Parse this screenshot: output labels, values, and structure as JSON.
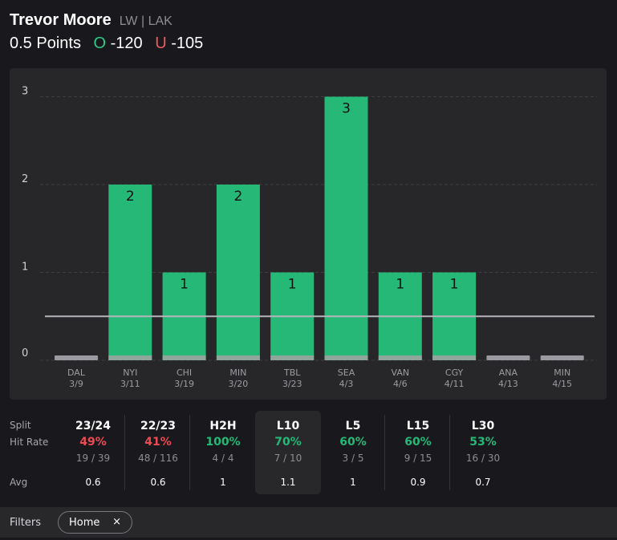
{
  "header": {
    "player": "Trevor Moore",
    "position": "LW | LAK",
    "prop": "0.5 Points",
    "over_symbol": "O",
    "over_odds": "-120",
    "under_symbol": "U",
    "under_odds": "-105"
  },
  "colors": {
    "green": "#26b877",
    "red": "#ec4b52",
    "line": "#b5b5b9",
    "zero_bar": "#9a9aa0"
  },
  "chart_data": {
    "type": "bar",
    "categories": [
      "DAL\n3/9",
      "NYI\n3/11",
      "CHI\n3/19",
      "MIN\n3/20",
      "TBL\n3/23",
      "SEA\n4/3",
      "VAN\n4/6",
      "CGY\n4/11",
      "ANA\n4/13",
      "MIN\n4/15"
    ],
    "teams": [
      "DAL",
      "NYI",
      "CHI",
      "MIN",
      "TBL",
      "SEA",
      "VAN",
      "CGY",
      "ANA",
      "MIN"
    ],
    "dates": [
      "3/9",
      "3/11",
      "3/19",
      "3/20",
      "3/23",
      "4/3",
      "4/6",
      "4/11",
      "4/13",
      "4/15"
    ],
    "values": [
      0,
      2,
      1,
      2,
      1,
      3,
      1,
      1,
      0,
      0
    ],
    "threshold": 0.5,
    "ylim": [
      0,
      3
    ],
    "yticks": [
      "0",
      "1",
      "2",
      "3"
    ],
    "grid": true
  },
  "stats": {
    "row_labels": [
      "Split",
      "Hit Rate",
      "Avg"
    ],
    "columns": [
      {
        "split": "23/24",
        "rate": "49%",
        "frac": "19 / 39",
        "avg": "0.6",
        "tone": "red"
      },
      {
        "split": "22/23",
        "rate": "41%",
        "frac": "48 / 116",
        "avg": "0.6",
        "tone": "red"
      },
      {
        "split": "H2H",
        "rate": "100%",
        "frac": "4 / 4",
        "avg": "1",
        "tone": "green"
      },
      {
        "split": "L10",
        "rate": "70%",
        "frac": "7 / 10",
        "avg": "1.1",
        "tone": "green",
        "selected": true
      },
      {
        "split": "L5",
        "rate": "60%",
        "frac": "3 / 5",
        "avg": "1",
        "tone": "green"
      },
      {
        "split": "L15",
        "rate": "60%",
        "frac": "9 / 15",
        "avg": "0.9",
        "tone": "green"
      },
      {
        "split": "L30",
        "rate": "53%",
        "frac": "16 / 30",
        "avg": "0.7",
        "tone": "green"
      }
    ]
  },
  "filters": {
    "label": "Filters",
    "chips": [
      {
        "label": "Home",
        "remove": "×"
      }
    ]
  }
}
